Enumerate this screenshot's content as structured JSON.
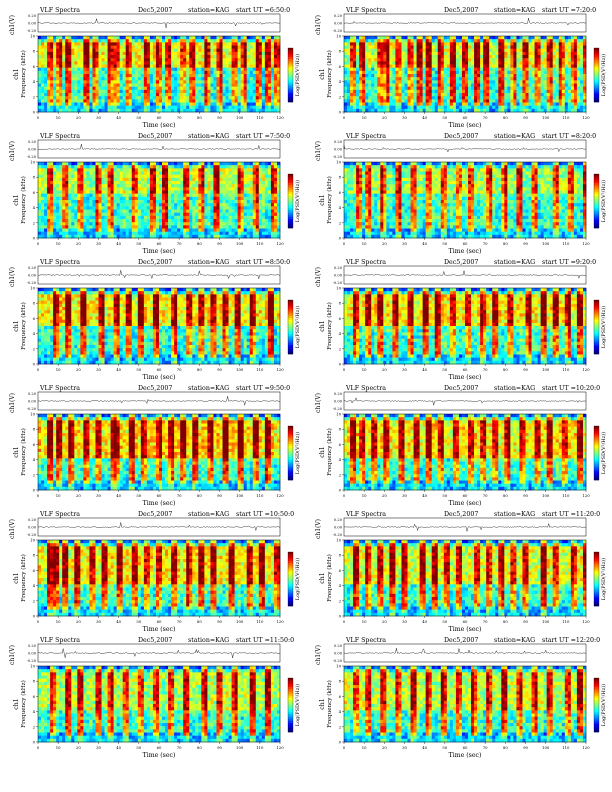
{
  "page": {
    "background": "#ffffff"
  },
  "colors": {
    "colormap": [
      "#00007f",
      "#0000ff",
      "#0080ff",
      "#00ffff",
      "#80ff80",
      "#ffff00",
      "#ff8000",
      "#ff0000",
      "#7f0000"
    ],
    "background_tint": "#38c8c8",
    "low_band": "#0050ff",
    "burst": "#e02000"
  },
  "chart_data": [
    {
      "type": "heatmap",
      "title": "VLF Spectra",
      "date": "Dec5,2007",
      "station": "station=KAG",
      "start": "start UT =6:50:0",
      "top_ylabel": "ch1(V)",
      "top_ticks": [
        "0.20",
        "0.00",
        "-0.20"
      ],
      "ylabel": "Frequency (kHz)",
      "ch_label": "ch1",
      "yticks": [
        "10",
        "8",
        "6",
        "4",
        "2",
        "0"
      ],
      "xlabel": "Time (sec)",
      "xticks": [
        "0",
        "10",
        "20",
        "30",
        "40",
        "50",
        "60",
        "70",
        "80",
        "90",
        "100",
        "110",
        "120"
      ],
      "colorbar_label": "Log(PSD(V²/Hz))",
      "xlim": [
        0,
        120
      ],
      "ylim": [
        0,
        10
      ],
      "texture": {
        "seed": 11,
        "bursts": [
          5,
          9,
          13,
          22,
          27,
          34,
          38,
          44,
          52,
          58,
          63,
          70,
          75,
          82,
          88,
          96,
          101,
          108,
          113,
          117
        ],
        "intensity": 0.55,
        "hot_band": [
          6,
          9
        ]
      }
    },
    {
      "type": "heatmap",
      "title": "VLF Spectra",
      "date": "Dec5,2007",
      "station": "station=KAG",
      "start": "start UT =7:20:0",
      "top_ylabel": "ch1(V)",
      "top_ticks": [
        "0.20",
        "0.00",
        "-0.20"
      ],
      "ylabel": "Frequency (kHz)",
      "ch_label": "ch1",
      "yticks": [
        "10",
        "8",
        "6",
        "4",
        "2",
        "0"
      ],
      "xlabel": "Time (sec)",
      "xticks": [
        "0",
        "10",
        "20",
        "30",
        "40",
        "50",
        "60",
        "70",
        "80",
        "90",
        "100",
        "110",
        "120"
      ],
      "colorbar_label": "Log(PSD(V²/Hz))",
      "xlim": [
        0,
        120
      ],
      "ylim": [
        0,
        10
      ],
      "texture": {
        "seed": 23,
        "bursts": [
          3,
          8,
          16,
          20,
          26,
          31,
          36,
          41,
          47,
          53,
          59,
          64,
          69,
          76,
          83,
          89,
          94,
          100,
          106,
          112,
          118
        ],
        "intensity": 0.45,
        "hot_band": [
          6,
          9
        ]
      }
    },
    {
      "type": "heatmap",
      "title": "VLF Spectra",
      "date": "Dec5,2007",
      "station": "station=KAG",
      "start": "start UT =7:50:0",
      "top_ylabel": "ch1(V)",
      "top_ticks": [
        "0.20",
        "0.00",
        "-0.20"
      ],
      "ylabel": "Frequency (kHz)",
      "ch_label": "ch1",
      "yticks": [
        "10",
        "8",
        "6",
        "4",
        "2",
        "0"
      ],
      "xlabel": "Time (sec)",
      "xticks": [
        "0",
        "10",
        "20",
        "30",
        "40",
        "50",
        "60",
        "70",
        "80",
        "90",
        "100",
        "110",
        "120"
      ],
      "colorbar_label": "Log(PSD(V²/Hz))",
      "xlim": [
        0,
        120
      ],
      "ylim": [
        0,
        10
      ],
      "texture": {
        "seed": 37,
        "bursts": [
          4,
          12,
          19,
          28,
          35,
          46,
          55,
          61,
          72,
          80,
          87,
          99,
          107,
          115
        ],
        "intensity": 0.35,
        "hot_band": [
          6,
          9
        ]
      }
    },
    {
      "type": "heatmap",
      "title": "VLF Spectra",
      "date": "Dec5,2007",
      "station": "station=KAG",
      "start": "start UT =8:20:0",
      "top_ylabel": "ch1(V)",
      "top_ticks": [
        "0.20",
        "0.00",
        "-0.20"
      ],
      "ylabel": "Frequency (kHz)",
      "ch_label": "ch1",
      "yticks": [
        "10",
        "8",
        "6",
        "4",
        "2",
        "0"
      ],
      "xlabel": "Time (sec)",
      "xticks": [
        "0",
        "10",
        "20",
        "30",
        "40",
        "50",
        "60",
        "70",
        "80",
        "90",
        "100",
        "110",
        "120"
      ],
      "colorbar_label": "Log(PSD(V²/Hz))",
      "xlim": [
        0,
        120
      ],
      "ylim": [
        0,
        10
      ],
      "texture": {
        "seed": 41,
        "bursts": [
          6,
          11,
          18,
          25,
          33,
          40,
          48,
          56,
          62,
          71,
          78,
          86,
          93,
          104,
          111,
          119
        ],
        "intensity": 0.3,
        "hot_band": [
          6,
          9
        ]
      }
    },
    {
      "type": "heatmap",
      "title": "VLF Spectra",
      "date": "Dec5,2007",
      "station": "station=KAG",
      "start": "start UT =8:50:0",
      "top_ylabel": "ch1(V)",
      "top_ticks": [
        "0.20",
        "0.00",
        "-0.20"
      ],
      "ylabel": "Frequency (kHz)",
      "ch_label": "ch1",
      "yticks": [
        "10",
        "8",
        "6",
        "4",
        "2",
        "0"
      ],
      "xlabel": "Time (sec)",
      "xticks": [
        "0",
        "10",
        "20",
        "30",
        "40",
        "50",
        "60",
        "70",
        "80",
        "90",
        "100",
        "110",
        "120"
      ],
      "colorbar_label": "Log(PSD(V²/Hz))",
      "xlim": [
        0,
        120
      ],
      "ylim": [
        0,
        10
      ],
      "texture": {
        "seed": 53,
        "bursts": [
          7,
          14,
          21,
          30,
          37,
          43,
          50,
          57,
          66,
          74,
          79,
          85,
          92,
          98,
          105,
          114
        ],
        "intensity": 0.6,
        "hot_band": [
          5,
          9
        ]
      }
    },
    {
      "type": "heatmap",
      "title": "VLF Spectra",
      "date": "Dec5,2007",
      "station": "station=KAG",
      "start": "start UT =9:20:0",
      "top_ylabel": "ch1(V)",
      "top_ticks": [
        "0.20",
        "0.00",
        "-0.20"
      ],
      "ylabel": "Frequency (kHz)",
      "ch_label": "ch1",
      "yticks": [
        "10",
        "8",
        "6",
        "4",
        "2",
        "0"
      ],
      "xlabel": "Time (sec)",
      "xticks": [
        "0",
        "10",
        "20",
        "30",
        "40",
        "50",
        "60",
        "70",
        "80",
        "90",
        "100",
        "110",
        "120"
      ],
      "colorbar_label": "Log(PSD(V²/Hz))",
      "xlim": [
        0,
        120
      ],
      "ylim": [
        0,
        10
      ],
      "texture": {
        "seed": 59,
        "bursts": [
          5,
          10,
          17,
          24,
          32,
          39,
          45,
          53,
          60,
          68,
          73,
          81,
          90,
          97,
          103,
          110,
          116
        ],
        "intensity": 0.6,
        "hot_band": [
          5,
          9
        ]
      }
    },
    {
      "type": "heatmap",
      "title": "VLF Spectra",
      "date": "Dec5,2007",
      "station": "station=KAG",
      "start": "start UT =9:50:0",
      "top_ylabel": "ch1(V)",
      "top_ticks": [
        "0.20",
        "0.00",
        "-0.20"
      ],
      "ylabel": "Frequency (kHz)",
      "ch_label": "ch1",
      "yticks": [
        "10",
        "8",
        "6",
        "4",
        "2",
        "0"
      ],
      "xlabel": "Time (sec)",
      "xticks": [
        "0",
        "10",
        "20",
        "30",
        "40",
        "50",
        "60",
        "70",
        "80",
        "90",
        "100",
        "110",
        "120"
      ],
      "colorbar_label": "Log(PSD(V²/Hz))",
      "xlim": [
        0,
        120
      ],
      "ylim": [
        0,
        10
      ],
      "texture": {
        "seed": 67,
        "bursts": [
          4,
          9,
          15,
          22,
          29,
          36,
          38,
          45,
          51,
          58,
          64,
          71,
          77,
          84,
          91,
          99,
          106,
          113
        ],
        "intensity": 0.65,
        "hot_band": [
          4,
          9
        ]
      }
    },
    {
      "type": "heatmap",
      "title": "VLF Spectra",
      "date": "Dec5,2007",
      "station": "station=KAG",
      "start": "start UT =10:20:0",
      "top_ylabel": "ch1(V)",
      "top_ticks": [
        "0.20",
        "0.00",
        "-0.20"
      ],
      "ylabel": "Frequency (kHz)",
      "ch_label": "ch1",
      "yticks": [
        "10",
        "8",
        "6",
        "4",
        "2",
        "0"
      ],
      "xlabel": "Time (sec)",
      "xticks": [
        "0",
        "10",
        "20",
        "30",
        "40",
        "50",
        "60",
        "70",
        "80",
        "90",
        "100",
        "110",
        "120"
      ],
      "colorbar_label": "Log(PSD(V²/Hz))",
      "xlim": [
        0,
        120
      ],
      "ylim": [
        0,
        10
      ],
      "texture": {
        "seed": 71,
        "bursts": [
          3,
          8,
          14,
          20,
          27,
          34,
          41,
          47,
          54,
          61,
          67,
          74,
          80,
          87,
          94,
          101,
          108,
          115
        ],
        "intensity": 0.6,
        "hot_band": [
          4,
          9
        ]
      }
    },
    {
      "type": "heatmap",
      "title": "VLF Spectra",
      "date": "Dec5,2007",
      "station": "station=KAG",
      "start": "start UT =10:50:0",
      "top_ylabel": "ch1(V)",
      "top_ticks": [
        "0.20",
        "0.00",
        "-0.20"
      ],
      "ylabel": "Frequency (kHz)",
      "ch_label": "ch1",
      "yticks": [
        "10",
        "8",
        "6",
        "4",
        "2",
        "0"
      ],
      "xlabel": "Time (sec)",
      "xticks": [
        "0",
        "10",
        "20",
        "30",
        "40",
        "50",
        "60",
        "70",
        "80",
        "90",
        "100",
        "110",
        "120"
      ],
      "colorbar_label": "Log(PSD(V²/Hz))",
      "xlim": [
        0,
        120
      ],
      "ylim": [
        0,
        10
      ],
      "texture": {
        "seed": 79,
        "bursts": [
          4,
          7,
          12,
          18,
          25,
          31,
          39,
          46,
          52,
          59,
          66,
          73,
          79,
          86,
          95,
          103,
          110,
          117
        ],
        "intensity": 0.55,
        "hot_band": [
          4,
          9
        ]
      }
    },
    {
      "type": "heatmap",
      "title": "VLF Spectra",
      "date": "Dec5,2007",
      "station": "station=KAG",
      "start": "start UT =11:20:0",
      "top_ylabel": "ch1(V)",
      "top_ticks": [
        "0.20",
        "0.00",
        "-0.20"
      ],
      "ylabel": "Frequency (kHz)",
      "ch_label": "ch1",
      "yticks": [
        "10",
        "8",
        "6",
        "4",
        "2",
        "0"
      ],
      "xlabel": "Time (sec)",
      "xticks": [
        "0",
        "10",
        "20",
        "30",
        "40",
        "50",
        "60",
        "70",
        "80",
        "90",
        "100",
        "110",
        "120"
      ],
      "colorbar_label": "Log(PSD(V²/Hz))",
      "xlim": [
        0,
        120
      ],
      "ylim": [
        0,
        10
      ],
      "texture": {
        "seed": 83,
        "bursts": [
          5,
          11,
          16,
          23,
          29,
          37,
          43,
          50,
          56,
          64,
          70,
          76,
          83,
          89,
          97,
          104,
          112,
          118
        ],
        "intensity": 0.5,
        "hot_band": [
          4,
          9
        ]
      }
    },
    {
      "type": "heatmap",
      "title": "VLF Spectra",
      "date": "Dec5,2007",
      "station": "station=KAG",
      "start": "start UT =11:50:0",
      "top_ylabel": "ch1(V)",
      "top_ticks": [
        "0.20",
        "0.00",
        "-0.20"
      ],
      "ylabel": "Frequency (kHz)",
      "ch_label": "ch1",
      "yticks": [
        "10",
        "8",
        "6",
        "4",
        "2",
        "0"
      ],
      "xlabel": "Time (sec)",
      "xticks": [
        "0",
        "10",
        "20",
        "30",
        "40",
        "50",
        "60",
        "70",
        "80",
        "90",
        "100",
        "110",
        "120"
      ],
      "colorbar_label": "Log(PSD(V²/Hz))",
      "xlim": [
        0,
        120
      ],
      "ylim": [
        0,
        10
      ],
      "texture": {
        "seed": 89,
        "bursts": [
          6,
          13,
          20,
          28,
          35,
          42,
          49,
          57,
          65,
          72,
          81,
          88,
          96,
          105,
          113
        ],
        "intensity": 0.35,
        "hot_band": [
          4,
          9
        ]
      }
    },
    {
      "type": "heatmap",
      "title": "VLF Spectra",
      "date": "Dec5,2007",
      "station": "station=KAG",
      "start": "start UT =12:20:0",
      "top_ylabel": "ch1(V)",
      "top_ticks": [
        "0.20",
        "0.00",
        "-0.20"
      ],
      "ylabel": "Frequency (kHz)",
      "ch_label": "ch1",
      "yticks": [
        "10",
        "8",
        "6",
        "4",
        "2",
        "0"
      ],
      "xlabel": "Time (sec)",
      "xticks": [
        "0",
        "10",
        "20",
        "30",
        "40",
        "50",
        "60",
        "70",
        "80",
        "90",
        "100",
        "110",
        "120"
      ],
      "colorbar_label": "Log(PSD(V²/Hz))",
      "xlim": [
        0,
        120
      ],
      "ylim": [
        0,
        10
      ],
      "texture": {
        "seed": 97,
        "bursts": [
          4,
          10,
          18,
          26,
          33,
          40,
          48,
          55,
          63,
          70,
          78,
          85,
          93,
          101,
          109,
          116
        ],
        "intensity": 0.4,
        "hot_band": [
          4,
          9
        ]
      }
    }
  ]
}
